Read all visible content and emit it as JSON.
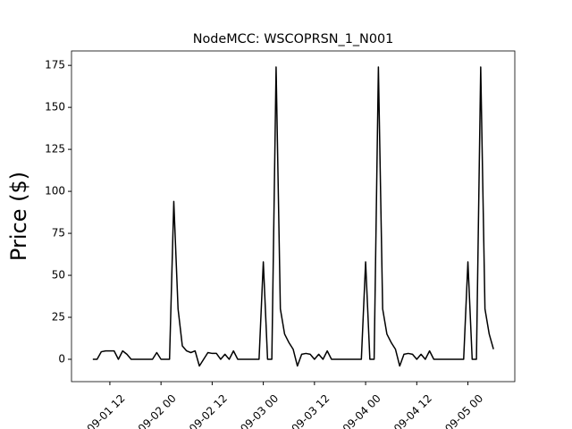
{
  "chart_data": {
    "type": "line",
    "title": "NodeMCC: WSCOPRSN_1_N001",
    "y_label": "Price ($)",
    "x": [
      "09-01 08",
      "09-01 09",
      "09-01 10",
      "09-01 11",
      "09-01 12",
      "09-01 13",
      "09-01 14",
      "09-01 15",
      "09-01 16",
      "09-01 17",
      "09-01 18",
      "09-01 19",
      "09-01 20",
      "09-01 21",
      "09-01 22",
      "09-01 23",
      "09-02 00",
      "09-02 01",
      "09-02 02",
      "09-02 03",
      "09-02 04",
      "09-02 05",
      "09-02 06",
      "09-02 07",
      "09-02 08",
      "09-02 09",
      "09-02 10",
      "09-02 11",
      "09-02 12",
      "09-02 13",
      "09-02 14",
      "09-02 15",
      "09-02 16",
      "09-02 17",
      "09-02 18",
      "09-02 19",
      "09-02 20",
      "09-02 21",
      "09-02 22",
      "09-02 23",
      "09-03 00",
      "09-03 01",
      "09-03 02",
      "09-03 03",
      "09-03 04",
      "09-03 05",
      "09-03 06",
      "09-03 07",
      "09-03 08",
      "09-03 09",
      "09-03 10",
      "09-03 11",
      "09-03 12",
      "09-03 13",
      "09-03 14",
      "09-03 15",
      "09-03 16",
      "09-03 17",
      "09-03 18",
      "09-03 19",
      "09-03 20",
      "09-03 21",
      "09-03 22",
      "09-03 23",
      "09-04 00",
      "09-04 01",
      "09-04 02",
      "09-04 03",
      "09-04 04",
      "09-04 05",
      "09-04 06",
      "09-04 07",
      "09-04 08",
      "09-04 09",
      "09-04 10",
      "09-04 11",
      "09-04 12",
      "09-04 13",
      "09-04 14",
      "09-04 15",
      "09-04 16",
      "09-04 17",
      "09-04 18",
      "09-04 19",
      "09-04 20",
      "09-04 21",
      "09-04 22",
      "09-04 23",
      "09-05 00",
      "09-05 01",
      "09-05 02",
      "09-05 03",
      "09-05 04",
      "09-05 05",
      "09-05 06"
    ],
    "series": [
      {
        "name": "WSCOPRSN_1_N001",
        "color": "#000000",
        "values": [
          0,
          0,
          4.5,
          5,
          5,
          5,
          0,
          5,
          3,
          0,
          0,
          0,
          0,
          0,
          0,
          4,
          0,
          0,
          0,
          94,
          30,
          8,
          5,
          4,
          5,
          -4,
          0,
          4,
          3.5,
          3.5,
          0,
          3,
          0,
          5,
          0,
          0,
          0,
          0,
          0,
          0,
          58,
          0,
          0,
          174,
          30,
          15,
          10,
          6,
          -4,
          3,
          3.5,
          3,
          0,
          3,
          0,
          5,
          0,
          0,
          0,
          0,
          0,
          0,
          0,
          0,
          58,
          0,
          0,
          174,
          30,
          15,
          10,
          6,
          -4,
          3,
          3.5,
          3,
          0,
          3,
          0,
          5,
          0,
          0,
          0,
          0,
          0,
          0,
          0,
          0,
          58,
          0,
          0,
          174,
          30,
          15,
          6
        ]
      }
    ],
    "xlim": [
      "09-01 03",
      "09-05 11"
    ],
    "xticks": [
      "09-01 12",
      "09-02 00",
      "09-02 12",
      "09-03 00",
      "09-03 12",
      "09-04 00",
      "09-04 12",
      "09-05 00"
    ],
    "ylim": [
      -13.3,
      183.6
    ],
    "yticks": [
      0,
      25,
      50,
      75,
      100,
      125,
      150,
      175
    ],
    "grid": false
  }
}
